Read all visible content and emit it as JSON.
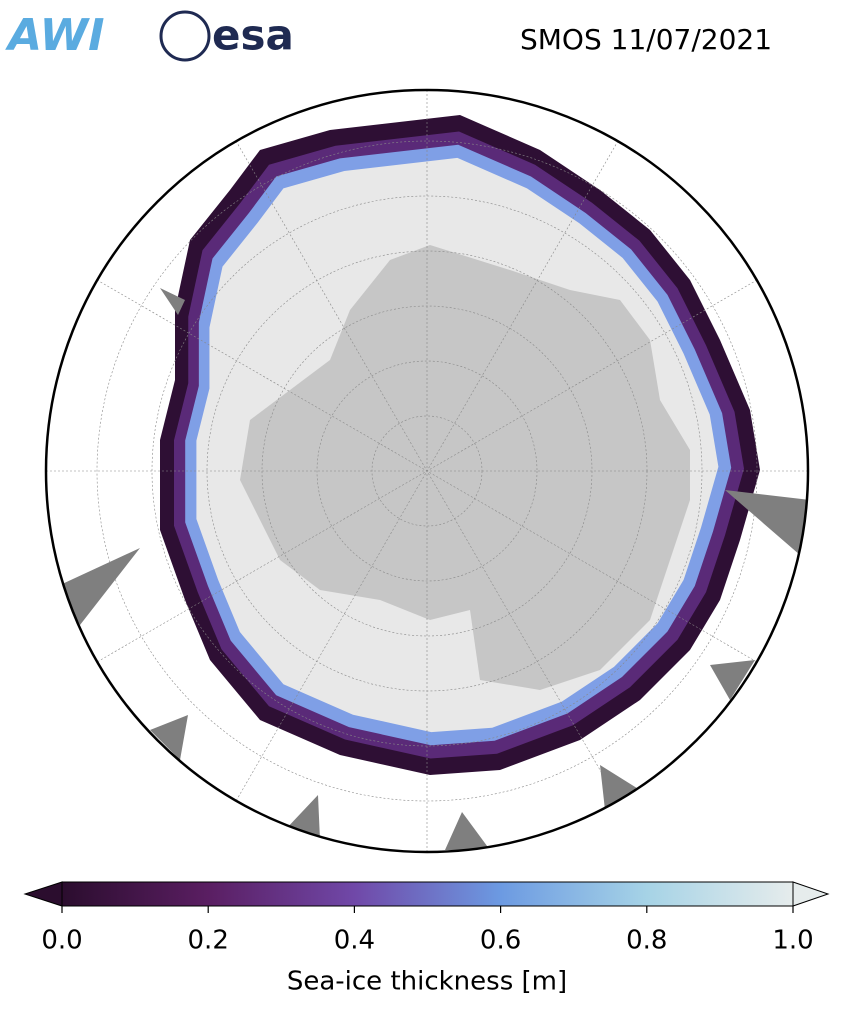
{
  "logos": [
    "AWI",
    "esa"
  ],
  "title": "SMOS 11/07/2021",
  "colorbar": {
    "label": "Sea-ice thickness [m]",
    "lim": [
      0,
      1
    ],
    "ticks": [
      {
        "value": 0,
        "label": "0.0"
      },
      0.2,
      0.4,
      0.6,
      0.8,
      {
        "value": 1,
        "label": "1.0"
      }
    ]
  }
}
